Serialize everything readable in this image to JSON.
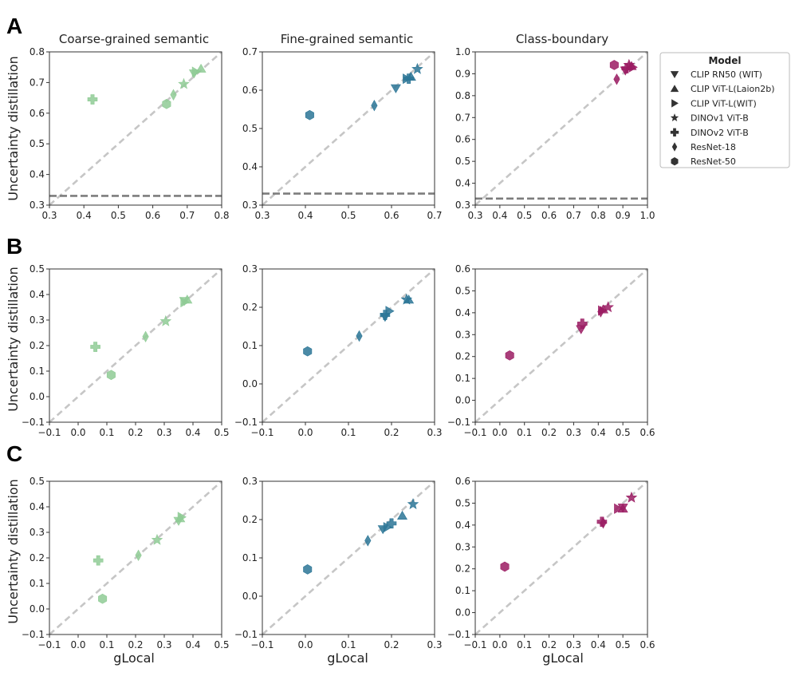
{
  "column_titles": [
    "Coarse-grained semantic",
    "Fine-grained semantic",
    "Class-boundary"
  ],
  "row_labels": [
    "A",
    "B",
    "C"
  ],
  "ylabel": "Uncertainty distillation",
  "xlabel": "gLocal",
  "colors": {
    "coarse": "#8fcb95",
    "fine": "#2c7696",
    "boundary": "#9b1c63",
    "diag": "#c6c6c6",
    "hline": "#7d7d7d"
  },
  "legend": {
    "title": "Model",
    "entries": [
      {
        "label": "CLIP RN50 (WIT)",
        "marker": "triangle-down"
      },
      {
        "label": "CLIP ViT-L(Laion2b)",
        "marker": "triangle-up"
      },
      {
        "label": "CLIP ViT-L(WIT)",
        "marker": "triangle-right"
      },
      {
        "label": "DINOv1  ViT-B",
        "marker": "star"
      },
      {
        "label": "DINOv2  ViT-B",
        "marker": "plus"
      },
      {
        "label": "ResNet-18",
        "marker": "diamond"
      },
      {
        "label": "ResNet-50",
        "marker": "hexagon"
      }
    ]
  },
  "chart_data": [
    {
      "type": "scatter",
      "row": "A",
      "title": "Coarse-grained semantic",
      "xlim": [
        0.3,
        0.8
      ],
      "ylim": [
        0.3,
        0.8
      ],
      "xticks": [
        "0.3",
        "0.4",
        "0.5",
        "0.6",
        "0.7",
        "0.8"
      ],
      "yticks": [
        "0.3",
        "0.4",
        "0.5",
        "0.6",
        "0.7",
        "0.8"
      ],
      "hline": 0.33,
      "color": "coarse",
      "points": [
        {
          "model": "CLIP RN50 (WIT)",
          "x": 0.72,
          "y": 0.73
        },
        {
          "model": "CLIP ViT-L(Laion2b)",
          "x": 0.74,
          "y": 0.745
        },
        {
          "model": "CLIP ViT-L(WIT)",
          "x": 0.725,
          "y": 0.735
        },
        {
          "model": "DINOv1  ViT-B",
          "x": 0.69,
          "y": 0.695
        },
        {
          "model": "DINOv2  ViT-B",
          "x": 0.425,
          "y": 0.645
        },
        {
          "model": "ResNet-18",
          "x": 0.66,
          "y": 0.66
        },
        {
          "model": "ResNet-50",
          "x": 0.64,
          "y": 0.63
        }
      ]
    },
    {
      "type": "scatter",
      "row": "A",
      "title": "Fine-grained semantic",
      "xlim": [
        0.3,
        0.7
      ],
      "ylim": [
        0.3,
        0.7
      ],
      "xticks": [
        "0.3",
        "0.4",
        "0.5",
        "0.6",
        "0.7"
      ],
      "yticks": [
        "0.3",
        "0.4",
        "0.5",
        "0.6",
        "0.7"
      ],
      "hline": 0.33,
      "color": "fine",
      "points": [
        {
          "model": "CLIP RN50 (WIT)",
          "x": 0.61,
          "y": 0.605
        },
        {
          "model": "CLIP ViT-L(Laion2b)",
          "x": 0.645,
          "y": 0.635
        },
        {
          "model": "CLIP ViT-L(WIT)",
          "x": 0.635,
          "y": 0.63
        },
        {
          "model": "DINOv1  ViT-B",
          "x": 0.66,
          "y": 0.655
        },
        {
          "model": "DINOv2  ViT-B",
          "x": 0.64,
          "y": 0.63
        },
        {
          "model": "ResNet-18",
          "x": 0.56,
          "y": 0.56
        },
        {
          "model": "ResNet-50",
          "x": 0.41,
          "y": 0.535
        }
      ]
    },
    {
      "type": "scatter",
      "row": "A",
      "title": "Class-boundary",
      "xlim": [
        0.3,
        1.0
      ],
      "ylim": [
        0.3,
        1.0
      ],
      "xticks": [
        "0.3",
        "0.4",
        "0.5",
        "0.6",
        "0.7",
        "0.8",
        "0.9",
        "1.0"
      ],
      "yticks": [
        "0.3",
        "0.4",
        "0.5",
        "0.6",
        "0.7",
        "0.8",
        "0.9",
        "1.0"
      ],
      "hline": 0.33,
      "color": "boundary",
      "points": [
        {
          "model": "CLIP RN50 (WIT)",
          "x": 0.91,
          "y": 0.915
        },
        {
          "model": "CLIP ViT-L(Laion2b)",
          "x": 0.935,
          "y": 0.935
        },
        {
          "model": "CLIP ViT-L(WIT)",
          "x": 0.94,
          "y": 0.93
        },
        {
          "model": "DINOv1  ViT-B",
          "x": 0.925,
          "y": 0.94
        },
        {
          "model": "DINOv2  ViT-B",
          "x": 0.915,
          "y": 0.925
        },
        {
          "model": "ResNet-18",
          "x": 0.875,
          "y": 0.875
        },
        {
          "model": "ResNet-50",
          "x": 0.865,
          "y": 0.94
        }
      ]
    },
    {
      "type": "scatter",
      "row": "B",
      "title": "",
      "xlim": [
        -0.1,
        0.5
      ],
      "ylim": [
        -0.1,
        0.5
      ],
      "xticks": [
        "−0.1",
        "0.0",
        "0.1",
        "0.2",
        "0.3",
        "0.4",
        "0.5"
      ],
      "yticks": [
        "−0.1",
        "0.0",
        "0.1",
        "0.2",
        "0.3",
        "0.4",
        "0.5"
      ],
      "hline": null,
      "color": "coarse",
      "points": [
        {
          "model": "CLIP RN50 (WIT)",
          "x": 0.37,
          "y": 0.375
        },
        {
          "model": "CLIP ViT-L(Laion2b)",
          "x": 0.38,
          "y": 0.38
        },
        {
          "model": "CLIP ViT-L(WIT)",
          "x": 0.37,
          "y": 0.37
        },
        {
          "model": "DINOv1  ViT-B",
          "x": 0.305,
          "y": 0.295
        },
        {
          "model": "DINOv2  ViT-B",
          "x": 0.06,
          "y": 0.195
        },
        {
          "model": "ResNet-18",
          "x": 0.235,
          "y": 0.235
        },
        {
          "model": "ResNet-50",
          "x": 0.115,
          "y": 0.085
        }
      ]
    },
    {
      "type": "scatter",
      "row": "B",
      "title": "",
      "xlim": [
        -0.1,
        0.3
      ],
      "ylim": [
        -0.1,
        0.3
      ],
      "xticks": [
        "−0.1",
        "0.0",
        "0.1",
        "0.2",
        "0.3"
      ],
      "yticks": [
        "−0.1",
        "0.0",
        "0.1",
        "0.2",
        "0.3"
      ],
      "hline": null,
      "color": "fine",
      "points": [
        {
          "model": "CLIP RN50 (WIT)",
          "x": 0.185,
          "y": 0.175
        },
        {
          "model": "CLIP ViT-L(Laion2b)",
          "x": 0.24,
          "y": 0.22
        },
        {
          "model": "CLIP ViT-L(WIT)",
          "x": 0.195,
          "y": 0.19
        },
        {
          "model": "DINOv1  ViT-B",
          "x": 0.235,
          "y": 0.22
        },
        {
          "model": "DINOv2  ViT-B",
          "x": 0.185,
          "y": 0.18
        },
        {
          "model": "ResNet-18",
          "x": 0.125,
          "y": 0.125
        },
        {
          "model": "ResNet-50",
          "x": 0.005,
          "y": 0.085
        }
      ]
    },
    {
      "type": "scatter",
      "row": "B",
      "title": "",
      "xlim": [
        -0.1,
        0.6
      ],
      "ylim": [
        -0.1,
        0.6
      ],
      "xticks": [
        "−0.1",
        "0.0",
        "0.1",
        "0.2",
        "0.3",
        "0.4",
        "0.5",
        "0.6"
      ],
      "yticks": [
        "−0.1",
        "0.0",
        "0.1",
        "0.2",
        "0.3",
        "0.4",
        "0.5",
        "0.6"
      ],
      "hline": null,
      "color": "boundary",
      "points": [
        {
          "model": "CLIP RN50 (WIT)",
          "x": 0.33,
          "y": 0.325
        },
        {
          "model": "CLIP ViT-L(Laion2b)",
          "x": 0.42,
          "y": 0.415
        },
        {
          "model": "CLIP ViT-L(WIT)",
          "x": 0.415,
          "y": 0.41
        },
        {
          "model": "DINOv1  ViT-B",
          "x": 0.44,
          "y": 0.425
        },
        {
          "model": "DINOv2  ViT-B",
          "x": 0.335,
          "y": 0.35
        },
        {
          "model": "ResNet-18",
          "x": 0.41,
          "y": 0.405
        },
        {
          "model": "ResNet-50",
          "x": 0.04,
          "y": 0.205
        }
      ]
    },
    {
      "type": "scatter",
      "row": "C",
      "title": "",
      "xlim": [
        -0.1,
        0.5
      ],
      "ylim": [
        -0.1,
        0.5
      ],
      "xticks": [
        "−0.1",
        "0.0",
        "0.1",
        "0.2",
        "0.3",
        "0.4",
        "0.5"
      ],
      "yticks": [
        "−0.1",
        "0.0",
        "0.1",
        "0.2",
        "0.3",
        "0.4",
        "0.5"
      ],
      "hline": null,
      "color": "coarse",
      "points": [
        {
          "model": "CLIP RN50 (WIT)",
          "x": 0.35,
          "y": 0.345
        },
        {
          "model": "CLIP ViT-L(Laion2b)",
          "x": 0.355,
          "y": 0.355
        },
        {
          "model": "CLIP ViT-L(WIT)",
          "x": 0.36,
          "y": 0.36
        },
        {
          "model": "DINOv1  ViT-B",
          "x": 0.275,
          "y": 0.27
        },
        {
          "model": "DINOv2  ViT-B",
          "x": 0.07,
          "y": 0.19
        },
        {
          "model": "ResNet-18",
          "x": 0.21,
          "y": 0.21
        },
        {
          "model": "ResNet-50",
          "x": 0.085,
          "y": 0.04
        }
      ]
    },
    {
      "type": "scatter",
      "row": "C",
      "title": "",
      "xlim": [
        -0.1,
        0.3
      ],
      "ylim": [
        -0.1,
        0.3
      ],
      "xticks": [
        "−0.1",
        "0.0",
        "0.1",
        "0.2",
        "0.3"
      ],
      "yticks": [
        "−0.1",
        "0.0",
        "0.1",
        "0.2",
        "0.3"
      ],
      "hline": null,
      "color": "fine",
      "points": [
        {
          "model": "CLIP RN50 (WIT)",
          "x": 0.18,
          "y": 0.175
        },
        {
          "model": "CLIP ViT-L(Laion2b)",
          "x": 0.225,
          "y": 0.21
        },
        {
          "model": "CLIP ViT-L(WIT)",
          "x": 0.19,
          "y": 0.18
        },
        {
          "model": "DINOv1  ViT-B",
          "x": 0.25,
          "y": 0.24
        },
        {
          "model": "DINOv2  ViT-B",
          "x": 0.2,
          "y": 0.19
        },
        {
          "model": "ResNet-18",
          "x": 0.145,
          "y": 0.145
        },
        {
          "model": "ResNet-50",
          "x": 0.005,
          "y": 0.07
        }
      ]
    },
    {
      "type": "scatter",
      "row": "C",
      "title": "",
      "xlim": [
        -0.1,
        0.6
      ],
      "ylim": [
        -0.1,
        0.6
      ],
      "xticks": [
        "−0.1",
        "0.0",
        "0.1",
        "0.2",
        "0.3",
        "0.4",
        "0.5",
        "0.6"
      ],
      "yticks": [
        "−0.1",
        "0.0",
        "0.1",
        "0.2",
        "0.3",
        "0.4",
        "0.5",
        "0.6"
      ],
      "hline": null,
      "color": "boundary",
      "points": [
        {
          "model": "CLIP RN50 (WIT)",
          "x": 0.5,
          "y": 0.48
        },
        {
          "model": "CLIP ViT-L(Laion2b)",
          "x": 0.5,
          "y": 0.475
        },
        {
          "model": "CLIP ViT-L(WIT)",
          "x": 0.48,
          "y": 0.475
        },
        {
          "model": "DINOv1  ViT-B",
          "x": 0.535,
          "y": 0.525
        },
        {
          "model": "DINOv2  ViT-B",
          "x": 0.415,
          "y": 0.415
        },
        {
          "model": "ResNet-18",
          "x": 0.42,
          "y": 0.41
        },
        {
          "model": "ResNet-50",
          "x": 0.02,
          "y": 0.21
        }
      ]
    }
  ]
}
